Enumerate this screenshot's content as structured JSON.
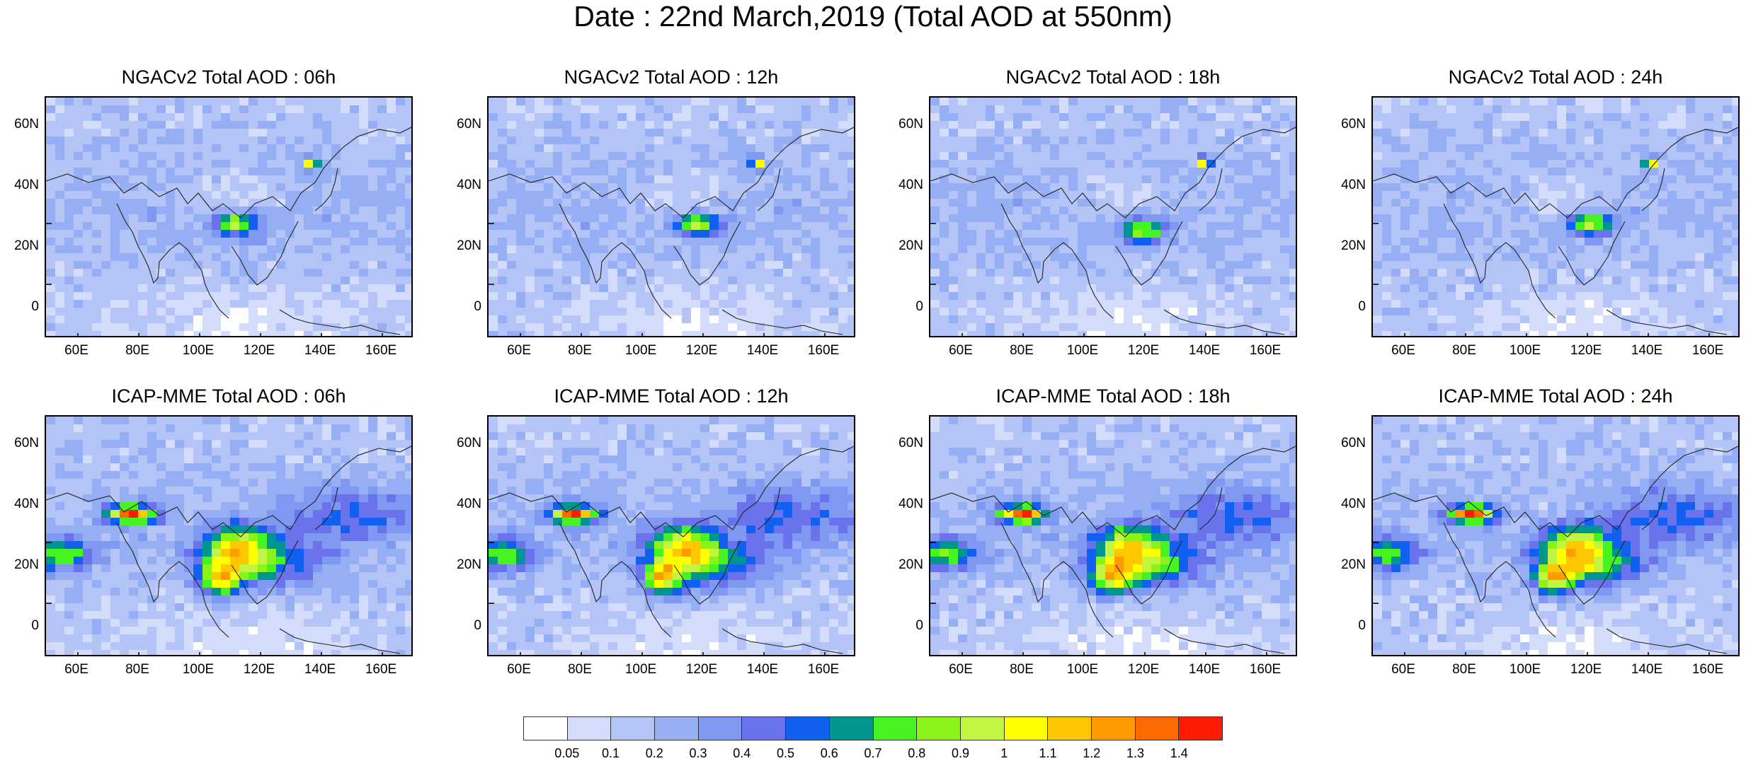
{
  "title": "Date : 22nd March,2019 (Total AOD at 550nm)",
  "panels": [
    {
      "title": "NGACv2 Total AOD : 06h",
      "model": "NGACv2",
      "hour": "06h"
    },
    {
      "title": "NGACv2 Total AOD : 12h",
      "model": "NGACv2",
      "hour": "12h"
    },
    {
      "title": "NGACv2 Total AOD : 18h",
      "model": "NGACv2",
      "hour": "18h"
    },
    {
      "title": "NGACv2 Total AOD : 24h",
      "model": "NGACv2",
      "hour": "24h"
    },
    {
      "title": "ICAP-MME Total AOD : 06h",
      "model": "ICAP-MME",
      "hour": "06h"
    },
    {
      "title": "ICAP-MME Total AOD : 12h",
      "model": "ICAP-MME",
      "hour": "12h"
    },
    {
      "title": "ICAP-MME Total AOD : 18h",
      "model": "ICAP-MME",
      "hour": "18h"
    },
    {
      "title": "ICAP-MME Total AOD : 24h",
      "model": "ICAP-MME",
      "hour": "24h"
    }
  ],
  "lat_labels": [
    "60N",
    "40N",
    "20N",
    "0"
  ],
  "lon_labels": [
    "60E",
    "80E",
    "100E",
    "120E",
    "140E",
    "160E"
  ],
  "colorbar": {
    "labels": [
      "0.05",
      "0.1",
      "0.2",
      "0.3",
      "0.4",
      "0.5",
      "0.6",
      "0.7",
      "0.8",
      "0.9",
      "1",
      "1.1",
      "1.2",
      "1.3",
      "1.4"
    ],
    "colors": [
      "#ffffff",
      "#d3dcfb",
      "#b4c4f7",
      "#95aef4",
      "#7f98f1",
      "#6a72ec",
      "#1160f0",
      "#009690",
      "#46f21f",
      "#8cf319",
      "#c1f542",
      "#ffff00",
      "#ffc700",
      "#ff9b00",
      "#ff6a00",
      "#ff1a00"
    ]
  }
}
